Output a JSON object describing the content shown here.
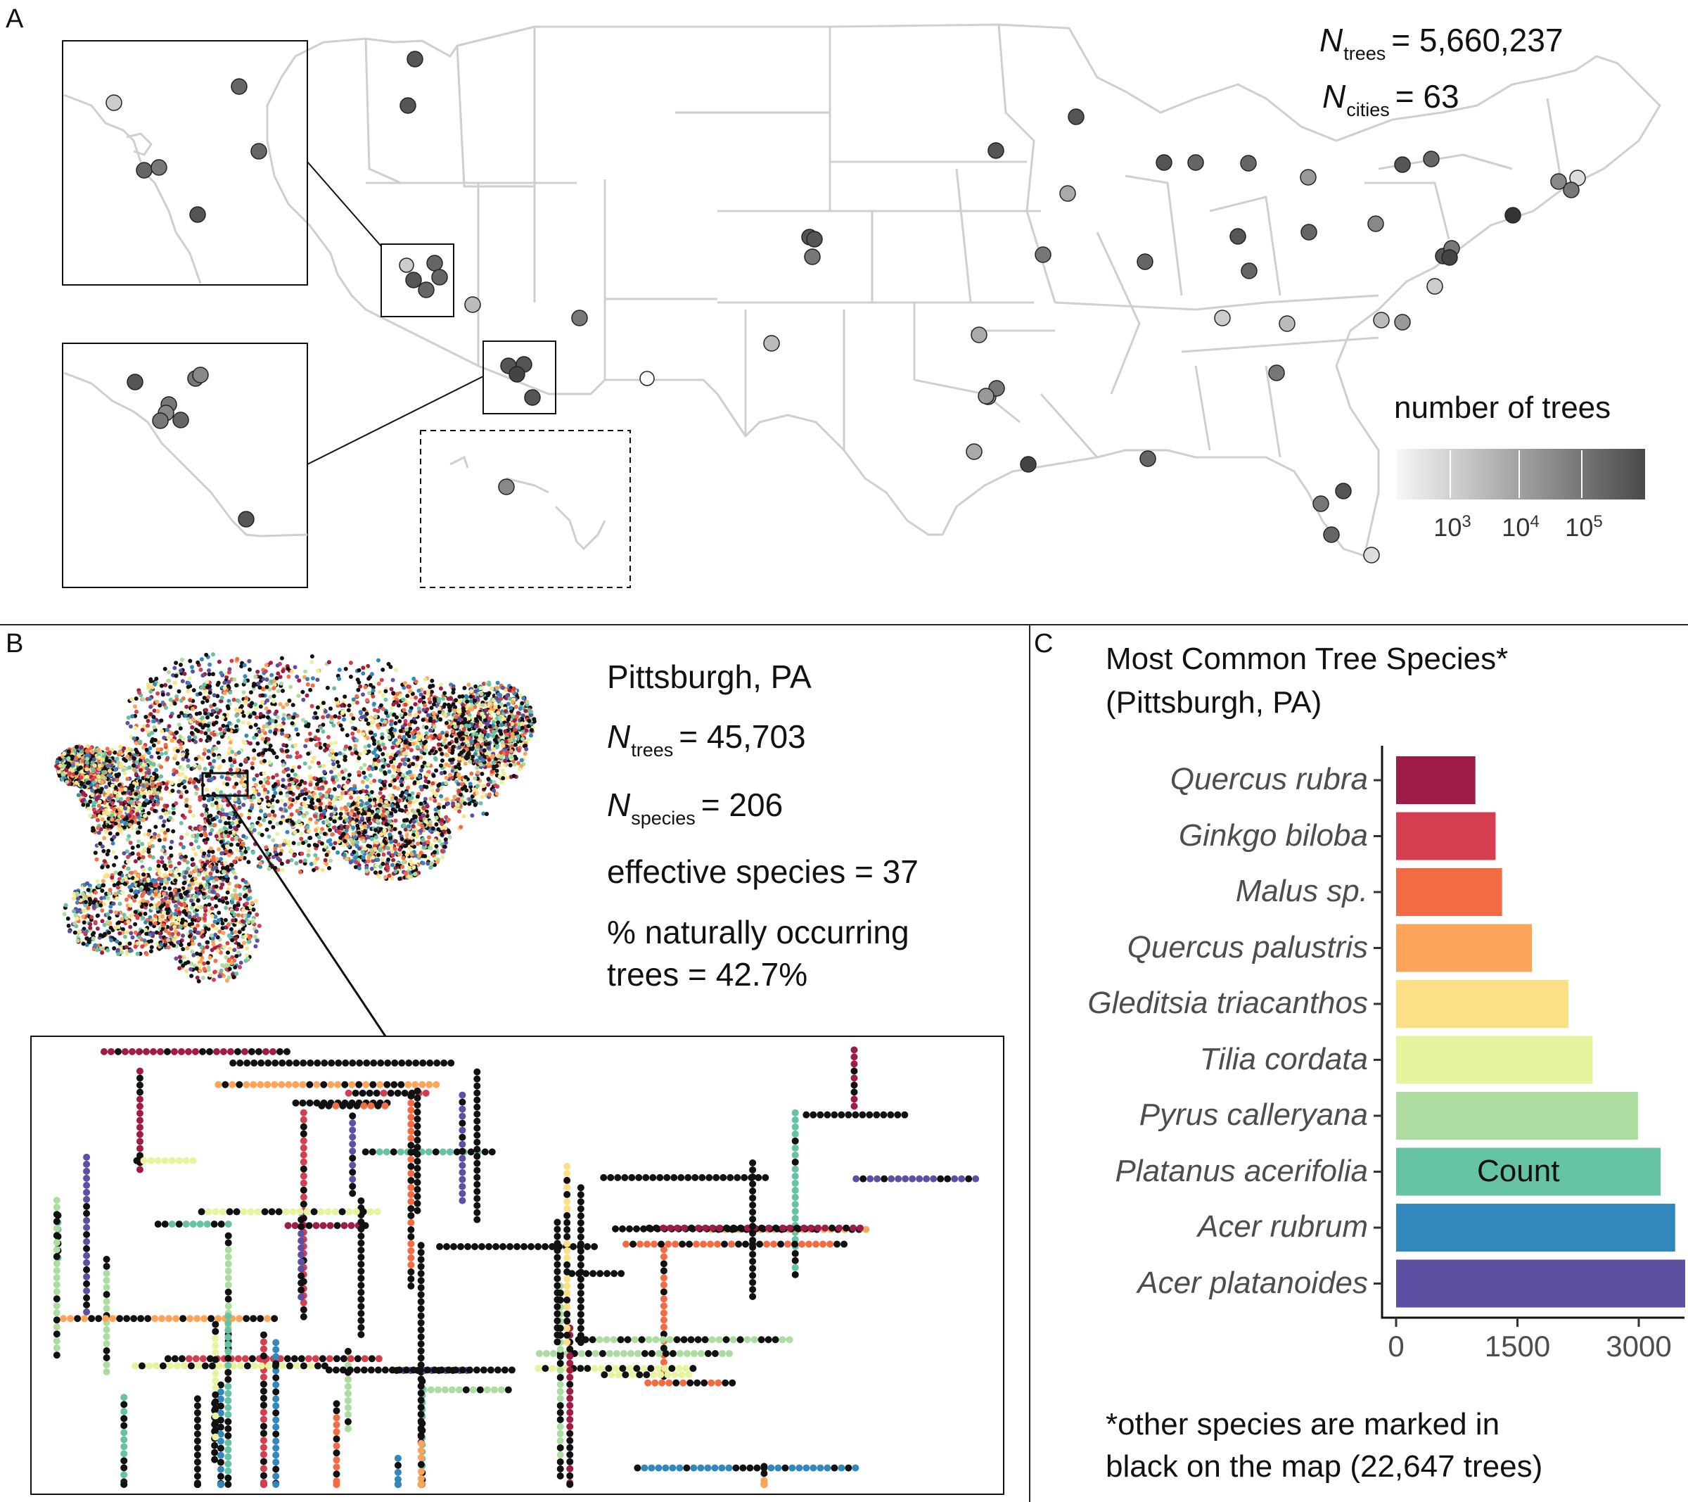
{
  "panels": {
    "a_label": "A",
    "b_label": "B",
    "c_label": "C"
  },
  "map_a": {
    "n_trees_sym": "N",
    "n_trees_sub": "trees",
    "n_trees_value": "= 5,660,237",
    "n_cities_sym": "N",
    "n_cities_sub": "cities",
    "n_cities_value": "= 63",
    "legend_title": "number of trees",
    "legend_ticks": [
      {
        "base": "10",
        "exp": "3"
      },
      {
        "base": "10",
        "exp": "4"
      },
      {
        "base": "10",
        "exp": "5"
      }
    ],
    "colors": {
      "light": "#e6e6e6",
      "dark": "#4a4a4a",
      "state_line": "#cfcfcf"
    }
  },
  "panel_b": {
    "city": "Pittsburgh, PA",
    "n_trees_sym": "N",
    "n_trees_sub": "trees",
    "n_trees_value": "= 45,703",
    "n_species_sym": "N",
    "n_species_sub": "species",
    "n_species_value": "= 206",
    "effective_species": "effective species = 37",
    "natural_line1": "% naturally occurring",
    "natural_line2": "trees = 42.7%"
  },
  "panel_c": {
    "title_line1": "Most Common Tree Species*",
    "title_line2": "(Pittsburgh, PA)",
    "xlabel": "Count",
    "footnote_line1": "*other species are marked in",
    "footnote_line2": "black on the map (22,647 trees)"
  },
  "chart_data": {
    "type": "bar",
    "orientation": "horizontal",
    "title": "Most Common Tree Species* (Pittsburgh, PA)",
    "xlabel": "Count",
    "ylabel": "",
    "xlim": [
      0,
      3800
    ],
    "xticks": [
      "0",
      "1500",
      "3000"
    ],
    "categories": [
      "Quercus rubra",
      "Ginkgo biloba",
      "Malus sp.",
      "Quercus palustris",
      "Gleditsia triacanthos",
      "Tilia cordata",
      "Pyrus calleryana",
      "Platanus acerifolia",
      "Acer rubrum",
      "Acer platanoides"
    ],
    "values": [
      980,
      1230,
      1310,
      1680,
      2130,
      2430,
      2990,
      3270,
      3450,
      3740
    ],
    "colors": [
      "#9e1c45",
      "#d53e4f",
      "#f26b43",
      "#fba45a",
      "#fde085",
      "#e8f39d",
      "#acdc9f",
      "#65c2a4",
      "#3288bd",
      "#5e4fa2"
    ],
    "grid": false,
    "legend": "none"
  }
}
